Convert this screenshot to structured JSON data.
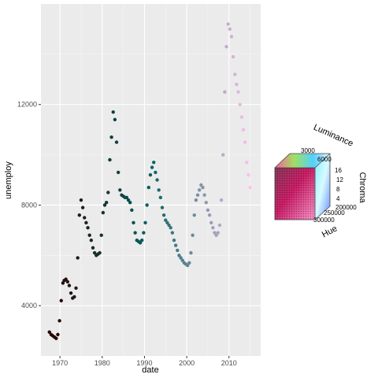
{
  "chart_data": {
    "type": "scatter",
    "title": "",
    "xlabel": "date",
    "ylabel": "unemploy",
    "xlim": [
      1965.5,
      2017.5
    ],
    "ylim": [
      2000,
      16000
    ],
    "x_ticks": [
      1970,
      1980,
      1990,
      2000,
      2010
    ],
    "x_tick_labels": [
      "1970",
      "1980",
      "1990",
      "2000",
      "2010"
    ],
    "y_ticks": [
      4000,
      8000,
      12000
    ],
    "y_tick_labels": [
      "4000",
      "8000",
      "12000"
    ],
    "grid": true,
    "background": "#ebebeb",
    "color_scale": {
      "start": "#2b0000",
      "mid": "#006060",
      "end": "#ffc2ec"
    },
    "series": [
      {
        "x": [
          1967.5,
          1967.9,
          1968.3,
          1968.7,
          1969.1,
          1969.5,
          1969.9,
          1970.3,
          1970.7,
          1971.0,
          1971.4,
          1971.8,
          1972.2,
          1972.6,
          1973.0,
          1973.4,
          1973.8,
          1974.2,
          1974.6,
          1975.0,
          1975.4,
          1975.8,
          1976.2,
          1976.6,
          1977.0,
          1977.4,
          1977.8,
          1978.2,
          1978.6,
          1979.0,
          1979.4,
          1979.8,
          1980.2,
          1980.6,
          1981.0,
          1981.4,
          1981.8,
          1982.2,
          1982.6,
          1983.0,
          1983.4,
          1983.8,
          1984.2,
          1984.6,
          1985.0,
          1985.4,
          1985.8,
          1986.2,
          1986.6,
          1987.0,
          1987.4,
          1987.8,
          1988.2,
          1988.6,
          1989.0,
          1989.4,
          1989.8,
          1990.2,
          1990.6,
          1991.0,
          1991.4,
          1991.8,
          1992.2,
          1992.6,
          1993.0,
          1993.4,
          1993.8,
          1994.2,
          1994.6,
          1995.0,
          1995.4,
          1995.8,
          1996.2,
          1996.6,
          1997.0,
          1997.4,
          1997.8,
          1998.2,
          1998.6,
          1999.0,
          1999.4,
          1999.8,
          2000.2,
          2000.6,
          2001.0,
          2001.4,
          2001.8,
          2002.2,
          2002.6,
          2003.0,
          2003.4,
          2003.8,
          2004.2,
          2004.6,
          2005.0,
          2005.4,
          2005.8,
          2006.2,
          2006.6,
          2007.0,
          2007.4,
          2007.8,
          2008.2,
          2008.6,
          2009.0,
          2009.4,
          2009.8,
          2010.2,
          2010.6,
          2011.0,
          2011.4,
          2011.8,
          2012.2,
          2012.6,
          2013.0,
          2013.4,
          2013.8,
          2014.2,
          2014.6,
          2015.0
        ],
        "y": [
          2950,
          2850,
          2800,
          2750,
          2700,
          2850,
          3400,
          4200,
          4900,
          5000,
          5050,
          4950,
          4800,
          4500,
          4300,
          4350,
          4700,
          5900,
          7600,
          8200,
          7900,
          7500,
          7300,
          7100,
          6800,
          6600,
          6300,
          6100,
          6000,
          6050,
          6100,
          6800,
          7700,
          8000,
          8100,
          8500,
          9800,
          10700,
          11700,
          11400,
          10500,
          9300,
          8600,
          8400,
          8350,
          8300,
          8300,
          8200,
          8100,
          7800,
          7300,
          6900,
          6600,
          6550,
          6500,
          6600,
          6900,
          7300,
          8000,
          8700,
          9200,
          9500,
          9700,
          9300,
          9000,
          8600,
          8300,
          7900,
          7600,
          7400,
          7300,
          7200,
          7100,
          6900,
          6600,
          6400,
          6200,
          6000,
          5900,
          5800,
          5700,
          5650,
          5600,
          5700,
          6100,
          6800,
          7600,
          8200,
          8400,
          8600,
          8800,
          8700,
          8400,
          8100,
          7800,
          7600,
          7300,
          7100,
          6900,
          6800,
          6900,
          7200,
          8200,
          10000,
          12500,
          14300,
          15200,
          15000,
          14700,
          13900,
          13200,
          12800,
          12500,
          12000,
          11500,
          11000,
          10500,
          9700,
          9200,
          8700
        ],
        "color_values": [
          0.0,
          0.01,
          0.02,
          0.03,
          0.03,
          0.04,
          0.05,
          0.06,
          0.07,
          0.08,
          0.08,
          0.09,
          0.1,
          0.11,
          0.12,
          0.13,
          0.13,
          0.14,
          0.15,
          0.16,
          0.17,
          0.18,
          0.18,
          0.19,
          0.2,
          0.21,
          0.22,
          0.23,
          0.24,
          0.24,
          0.25,
          0.26,
          0.27,
          0.28,
          0.29,
          0.29,
          0.3,
          0.31,
          0.32,
          0.33,
          0.34,
          0.34,
          0.35,
          0.36,
          0.37,
          0.38,
          0.39,
          0.39,
          0.4,
          0.41,
          0.42,
          0.43,
          0.44,
          0.45,
          0.45,
          0.46,
          0.47,
          0.48,
          0.49,
          0.5,
          0.5,
          0.51,
          0.52,
          0.53,
          0.54,
          0.55,
          0.55,
          0.56,
          0.57,
          0.58,
          0.59,
          0.6,
          0.61,
          0.61,
          0.62,
          0.63,
          0.64,
          0.65,
          0.66,
          0.66,
          0.67,
          0.68,
          0.69,
          0.7,
          0.71,
          0.71,
          0.72,
          0.73,
          0.74,
          0.75,
          0.76,
          0.76,
          0.77,
          0.78,
          0.79,
          0.8,
          0.81,
          0.82,
          0.82,
          0.83,
          0.84,
          0.85,
          0.86,
          0.87,
          0.87,
          0.88,
          0.89,
          0.9,
          0.91,
          0.92,
          0.92,
          0.93,
          0.94,
          0.95,
          0.96,
          0.97,
          0.97,
          0.98,
          0.99,
          1.0
        ]
      }
    ],
    "legend": {
      "placement": "right",
      "type": "colour-cube",
      "axis_titles": {
        "luminance": "Luminance",
        "chroma": "Chroma",
        "hue": "Hue"
      },
      "luminance_labels": [
        "3000",
        "6000"
      ],
      "chroma_labels": [
        "16",
        "12",
        "8",
        "4"
      ],
      "hue_labels": [
        "200000",
        "250000",
        "300000"
      ]
    }
  }
}
